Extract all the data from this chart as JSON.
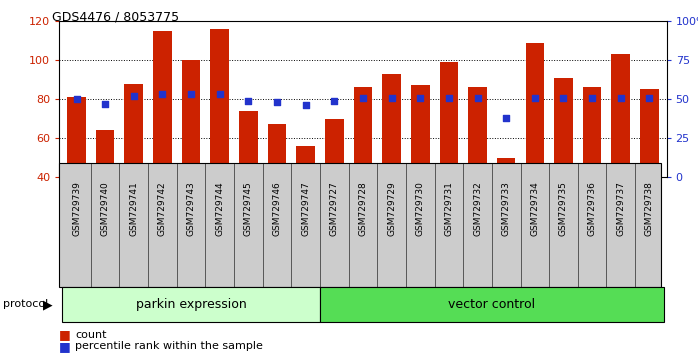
{
  "title": "GDS4476 / 8053775",
  "samples": [
    "GSM729739",
    "GSM729740",
    "GSM729741",
    "GSM729742",
    "GSM729743",
    "GSM729744",
    "GSM729745",
    "GSM729746",
    "GSM729747",
    "GSM729727",
    "GSM729728",
    "GSM729729",
    "GSM729730",
    "GSM729731",
    "GSM729732",
    "GSM729733",
    "GSM729734",
    "GSM729735",
    "GSM729736",
    "GSM729737",
    "GSM729738"
  ],
  "count_values": [
    81,
    64,
    88,
    115,
    100,
    116,
    74,
    67,
    56,
    70,
    86,
    93,
    87,
    99,
    86,
    50,
    109,
    91,
    86,
    103,
    85
  ],
  "percentile_values": [
    50,
    47,
    52,
    53,
    53,
    53,
    49,
    48,
    46,
    49,
    51,
    51,
    51,
    51,
    51,
    38,
    51,
    51,
    51,
    51,
    51
  ],
  "parkin_count": 9,
  "vector_count": 12,
  "ylim_left": [
    40,
    120
  ],
  "ylim_right": [
    0,
    100
  ],
  "yticks_left": [
    40,
    60,
    80,
    100,
    120
  ],
  "yticks_right": [
    0,
    25,
    50,
    75,
    100
  ],
  "bar_color": "#CC2200",
  "dot_color": "#2233CC",
  "label_color_left": "#CC2200",
  "label_color_right": "#2233CC",
  "parkin_bg": "#CCFFCC",
  "vector_bg": "#55DD55",
  "xlabel_bg": "#CCCCCC",
  "legend_bar_label": "count",
  "legend_dot_label": "percentile rank within the sample",
  "group1_label": "parkin expression",
  "group2_label": "vector control",
  "protocol_label": "protocol"
}
